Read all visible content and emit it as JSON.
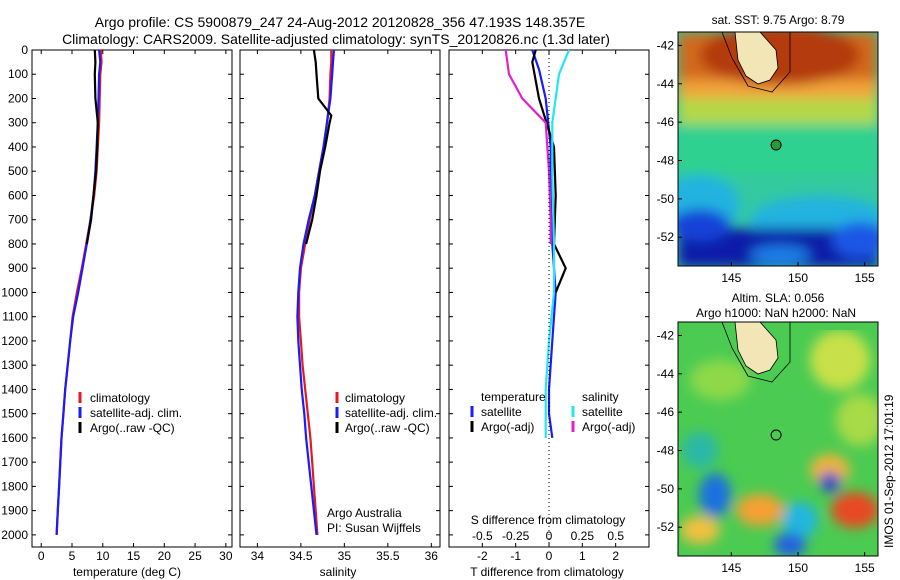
{
  "header": {
    "line1": "Argo profile: CS 5900879_247 24-Aug-2012 20120828_356 47.193S 148.357E",
    "line2": "Climatology: CARS2009. Satellite-adjusted climatology: synTS_20120826.nc (1.3d later)"
  },
  "colors": {
    "red": "#e8191e",
    "blue": "#1a1aff",
    "black": "#000000",
    "cyan": "#22e6f2",
    "magenta": "#e020d0"
  },
  "chart_data": [
    {
      "type": "line",
      "name_id": "temperature-profile",
      "xlabel": "temperature (deg C)",
      "xlim": [
        -1.5,
        31
      ],
      "xticks": [
        0,
        5,
        10,
        15,
        20,
        25,
        30
      ],
      "ylim": [
        2050,
        0
      ],
      "yticks": [
        0,
        100,
        200,
        300,
        400,
        500,
        600,
        700,
        800,
        900,
        1000,
        1100,
        1200,
        1300,
        1400,
        1500,
        1600,
        1700,
        1800,
        1900,
        2000
      ],
      "legend": [
        "climatology",
        "satellite-adj. clim.",
        "Argo(..raw -QC)"
      ],
      "series": [
        {
          "name": "climatology",
          "color": "red",
          "points": [
            [
              9.7,
              0
            ],
            [
              9.8,
              50
            ],
            [
              9.6,
              100
            ],
            [
              9.5,
              200
            ],
            [
              9.4,
              300
            ],
            [
              9.2,
              400
            ],
            [
              9.0,
              500
            ],
            [
              8.6,
              600
            ],
            [
              8.0,
              700
            ],
            [
              7.3,
              800
            ],
            [
              6.6,
              900
            ],
            [
              5.8,
              1000
            ],
            [
              5.1,
              1100
            ],
            [
              4.7,
              1200
            ],
            [
              4.3,
              1300
            ],
            [
              3.9,
              1400
            ],
            [
              3.6,
              1500
            ],
            [
              3.3,
              1600
            ],
            [
              3.1,
              1700
            ],
            [
              2.9,
              1800
            ],
            [
              2.7,
              1900
            ],
            [
              2.5,
              2000
            ]
          ]
        },
        {
          "name": "satellite-adj. clim.",
          "color": "blue",
          "points": [
            [
              9.4,
              0
            ],
            [
              9.6,
              50
            ],
            [
              9.4,
              100
            ],
            [
              9.3,
              200
            ],
            [
              9.2,
              300
            ],
            [
              9.0,
              400
            ],
            [
              8.8,
              500
            ],
            [
              8.5,
              600
            ],
            [
              8.0,
              700
            ],
            [
              7.4,
              800
            ],
            [
              6.7,
              900
            ],
            [
              6.0,
              1000
            ],
            [
              5.2,
              1100
            ],
            [
              4.7,
              1200
            ],
            [
              4.3,
              1300
            ],
            [
              3.9,
              1400
            ],
            [
              3.6,
              1500
            ],
            [
              3.3,
              1600
            ],
            [
              3.1,
              1700
            ],
            [
              2.9,
              1800
            ],
            [
              2.7,
              1900
            ],
            [
              2.5,
              2000
            ]
          ]
        },
        {
          "name": "Argo(..raw -QC)",
          "color": "black",
          "points": [
            [
              8.7,
              0
            ],
            [
              8.8,
              50
            ],
            [
              8.7,
              100
            ],
            [
              8.8,
              200
            ],
            [
              9.2,
              300
            ],
            [
              9.1,
              400
            ],
            [
              8.9,
              500
            ],
            [
              8.5,
              600
            ],
            [
              8.1,
              700
            ],
            [
              7.4,
              800
            ]
          ]
        }
      ]
    },
    {
      "type": "line",
      "name_id": "salinity-profile",
      "xlabel": "salinity",
      "xlim": [
        33.8,
        36.1
      ],
      "xticks": [
        34,
        34.5,
        35,
        35.5,
        36
      ],
      "ylim": [
        2050,
        0
      ],
      "legend": [
        "climatology",
        "satellite-adj. clim.",
        "Argo(..raw -QC)"
      ],
      "annotations": [
        "Argo Australia",
        "PI: Susan Wijffels"
      ],
      "series": [
        {
          "name": "climatology",
          "color": "red",
          "points": [
            [
              34.85,
              0
            ],
            [
              34.85,
              50
            ],
            [
              34.84,
              100
            ],
            [
              34.83,
              200
            ],
            [
              34.8,
              300
            ],
            [
              34.76,
              400
            ],
            [
              34.71,
              500
            ],
            [
              34.66,
              600
            ],
            [
              34.6,
              700
            ],
            [
              34.55,
              800
            ],
            [
              34.5,
              900
            ],
            [
              34.48,
              1000
            ],
            [
              34.48,
              1100
            ],
            [
              34.5,
              1200
            ],
            [
              34.52,
              1300
            ],
            [
              34.55,
              1400
            ],
            [
              34.58,
              1500
            ],
            [
              34.61,
              1600
            ],
            [
              34.63,
              1700
            ],
            [
              34.65,
              1800
            ],
            [
              34.67,
              1900
            ],
            [
              34.69,
              2000
            ]
          ]
        },
        {
          "name": "satellite-adj. clim.",
          "color": "blue",
          "points": [
            [
              34.88,
              0
            ],
            [
              34.87,
              50
            ],
            [
              34.86,
              100
            ],
            [
              34.84,
              200
            ],
            [
              34.8,
              300
            ],
            [
              34.76,
              400
            ],
            [
              34.71,
              500
            ],
            [
              34.66,
              600
            ],
            [
              34.59,
              700
            ],
            [
              34.53,
              800
            ],
            [
              34.49,
              900
            ],
            [
              34.47,
              1000
            ],
            [
              34.46,
              1100
            ],
            [
              34.47,
              1200
            ],
            [
              34.49,
              1300
            ],
            [
              34.51,
              1400
            ],
            [
              34.54,
              1500
            ],
            [
              34.56,
              1600
            ],
            [
              34.59,
              1700
            ],
            [
              34.62,
              1800
            ],
            [
              34.65,
              1900
            ],
            [
              34.68,
              2000
            ]
          ]
        },
        {
          "name": "Argo(..raw -QC)",
          "color": "black",
          "points": [
            [
              34.65,
              0
            ],
            [
              34.67,
              50
            ],
            [
              34.68,
              100
            ],
            [
              34.7,
              200
            ],
            [
              34.85,
              270
            ],
            [
              34.83,
              300
            ],
            [
              34.78,
              400
            ],
            [
              34.72,
              500
            ],
            [
              34.68,
              600
            ],
            [
              34.63,
              700
            ],
            [
              34.56,
              800
            ]
          ]
        }
      ]
    },
    {
      "type": "line",
      "name_id": "difference-profile",
      "xlabel": "T difference from climatology",
      "xlabel_top": "S difference from climatology",
      "xlim": [
        -3,
        3
      ],
      "xticks": [
        -2,
        -1,
        0,
        1,
        2
      ],
      "xticks_s": [
        -0.5,
        -0.25,
        0,
        0.25,
        0.5
      ],
      "ylim": [
        2050,
        0
      ],
      "legend_temperature": [
        "temperature",
        "satellite",
        "Argo(-adj)"
      ],
      "legend_salinity": [
        "salinity",
        "satellite",
        "Argo(-adj)"
      ],
      "series": [
        {
          "name": "satellite (temperature)",
          "color": "blue",
          "points": [
            [
              -0.5,
              0
            ],
            [
              -0.3,
              80
            ],
            [
              -0.1,
              200
            ],
            [
              0.05,
              400
            ],
            [
              0.05,
              600
            ],
            [
              0.1,
              800
            ],
            [
              0.2,
              1000
            ],
            [
              0.1,
              1200
            ],
            [
              0.0,
              1400
            ],
            [
              0.0,
              1500
            ],
            [
              0.1,
              1600
            ]
          ]
        },
        {
          "name": "Argo(-adj) (temperature)",
          "color": "black",
          "points": [
            [
              -0.4,
              0
            ],
            [
              -0.5,
              50
            ],
            [
              -0.3,
              200
            ],
            [
              0.15,
              400
            ],
            [
              0.2,
              600
            ],
            [
              0.15,
              800
            ],
            [
              0.5,
              900
            ],
            [
              0.2,
              1000
            ]
          ]
        },
        {
          "name": "satellite (salinity)",
          "color": "cyan",
          "points": [
            [
              0.6,
              0
            ],
            [
              0.3,
              100
            ],
            [
              0.1,
              300
            ],
            [
              0.1,
              500
            ],
            [
              0.15,
              800
            ],
            [
              0.15,
              1000
            ],
            [
              0.0,
              1200
            ],
            [
              -0.1,
              1400
            ],
            [
              -0.1,
              1600
            ]
          ]
        },
        {
          "name": "Argo(-adj) (salinity)",
          "color": "magenta",
          "points": [
            [
              -1.3,
              0
            ],
            [
              -1.2,
              100
            ],
            [
              -0.8,
              200
            ],
            [
              -0.1,
              300
            ],
            [
              0.0,
              500
            ],
            [
              0.05,
              700
            ],
            [
              0.05,
              800
            ]
          ]
        }
      ]
    },
    {
      "type": "heatmap",
      "name_id": "sst-map",
      "title": "sat. SST: 9.75  Argo: 8.79",
      "xticks": [
        145,
        150,
        155
      ],
      "yticks": [
        -42,
        -44,
        -46,
        -48,
        -50,
        -52
      ],
      "xlim": [
        141,
        156
      ],
      "ylim": [
        -53.5,
        -41.3
      ],
      "float_position": [
        148.357,
        -47.193
      ]
    },
    {
      "type": "heatmap",
      "name_id": "sla-map",
      "title": "Altim. SLA: 0.056",
      "subtitle": "Argo h1000: NaN h2000: NaN",
      "xticks": [
        145,
        150,
        155
      ],
      "yticks": [
        -42,
        -44,
        -46,
        -48,
        -50,
        -52
      ],
      "xlim": [
        141,
        156
      ],
      "ylim": [
        -53.5,
        -41.3
      ],
      "float_position": [
        148.357,
        -47.193
      ]
    }
  ],
  "timestamp": "IMOS 01-Sep-2012 17:01:19"
}
